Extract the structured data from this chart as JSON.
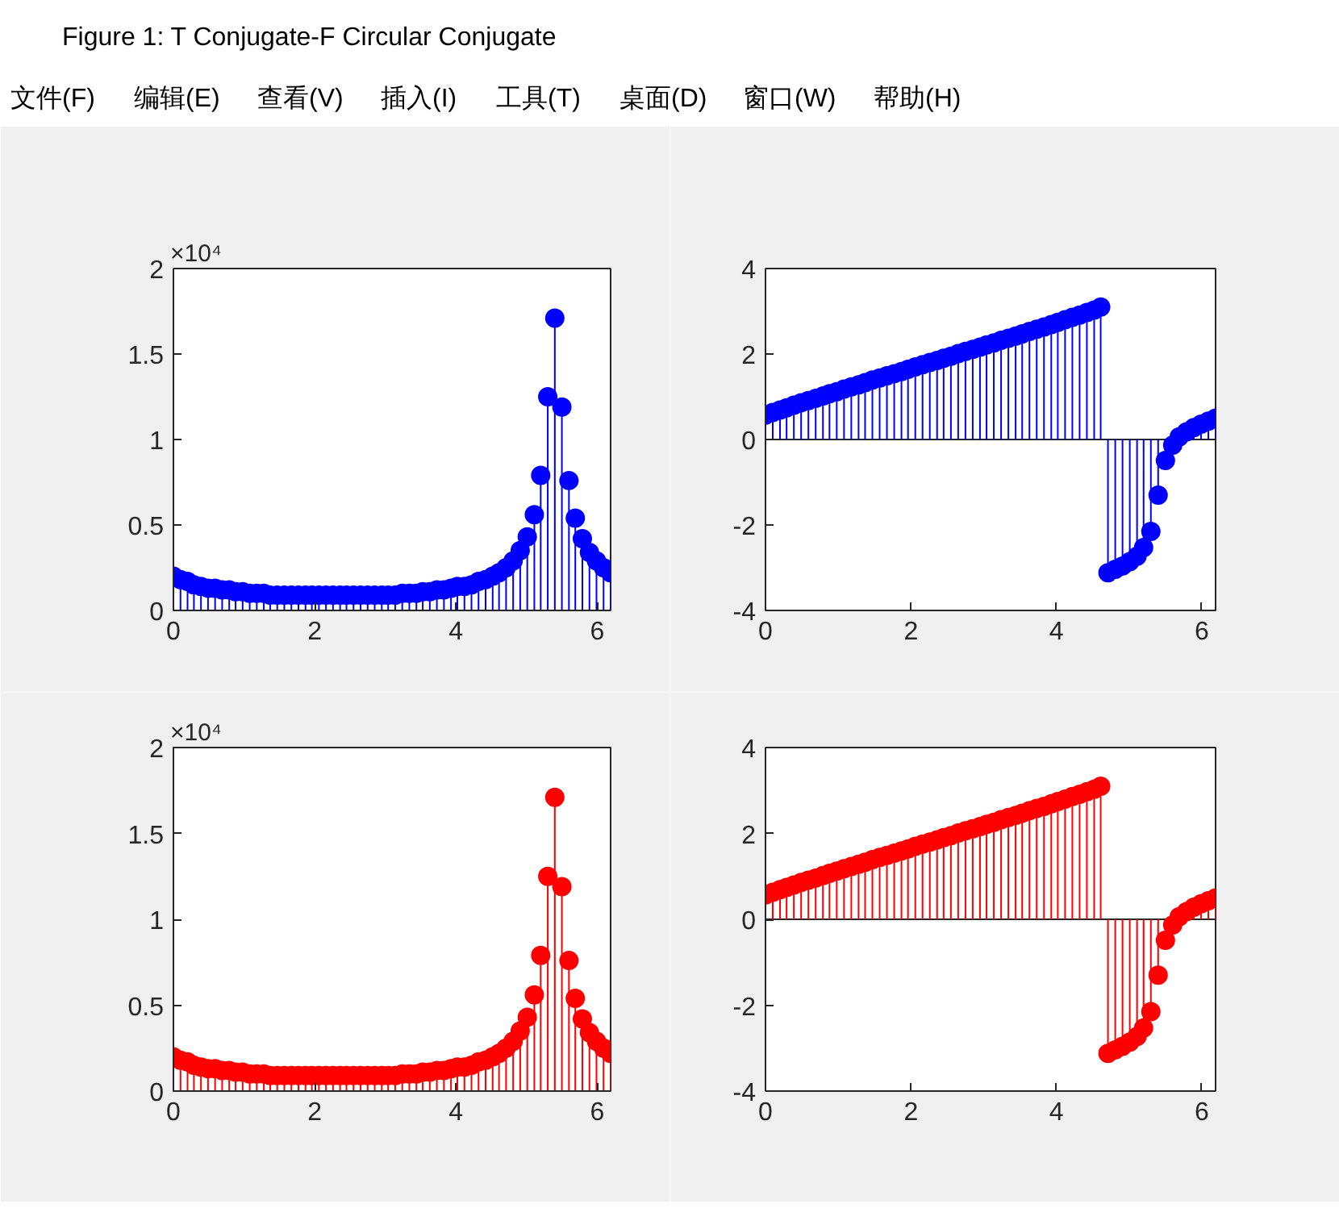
{
  "chart_data": [
    {
      "type": "other",
      "title": "Figure 1: T Conjugate-F Circular Conjugate",
      "annotations": [
        "文件(F)",
        "编辑(E)",
        "查看(V)",
        "插入(I)",
        "工具(T)",
        "桌面(D)",
        "窗口(W)",
        "帮助(H)"
      ]
    },
    {
      "type": "lollipop",
      "color": "#0000ff",
      "marker": "circle",
      "annotations": [
        "×10⁴"
      ],
      "x": [
        0,
        0.1,
        0.2,
        0.29,
        0.39,
        0.49,
        0.59,
        0.69,
        0.79,
        0.88,
        0.98,
        1.08,
        1.18,
        1.28,
        1.37,
        1.47,
        1.57,
        1.67,
        1.77,
        1.87,
        1.96,
        2.06,
        2.16,
        2.26,
        2.36,
        2.45,
        2.55,
        2.65,
        2.75,
        2.85,
        2.95,
        3.04,
        3.14,
        3.24,
        3.34,
        3.44,
        3.53,
        3.63,
        3.73,
        3.83,
        3.93,
        4.02,
        4.12,
        4.22,
        4.32,
        4.42,
        4.52,
        4.61,
        4.71,
        4.81,
        4.91,
        5.01,
        5.11,
        5.2,
        5.3,
        5.4,
        5.5,
        5.6,
        5.69,
        5.79,
        5.89,
        5.99,
        6.09,
        6.19
      ],
      "values": [
        0.2,
        0.18,
        0.17,
        0.15,
        0.14,
        0.13,
        0.13,
        0.12,
        0.12,
        0.11,
        0.11,
        0.1,
        0.1,
        0.1,
        0.09,
        0.09,
        0.09,
        0.09,
        0.09,
        0.09,
        0.09,
        0.09,
        0.09,
        0.09,
        0.09,
        0.09,
        0.09,
        0.09,
        0.09,
        0.09,
        0.09,
        0.09,
        0.09,
        0.1,
        0.1,
        0.1,
        0.11,
        0.11,
        0.12,
        0.12,
        0.13,
        0.14,
        0.14,
        0.15,
        0.17,
        0.18,
        0.2,
        0.22,
        0.25,
        0.29,
        0.35,
        0.43,
        0.56,
        0.79,
        1.25,
        1.71,
        1.19,
        0.76,
        0.54,
        0.42,
        0.34,
        0.29,
        0.25,
        0.22
      ],
      "xlim": [
        0,
        6.19
      ],
      "xticks": [
        0,
        2,
        4,
        6
      ],
      "ylim": [
        0,
        2
      ],
      "yticks": [
        0,
        0.5,
        1,
        1.5,
        2
      ]
    },
    {
      "type": "lollipop",
      "color": "#0000ff",
      "marker": "circle",
      "x": [
        0,
        0.1,
        0.2,
        0.29,
        0.39,
        0.49,
        0.59,
        0.69,
        0.79,
        0.88,
        0.98,
        1.08,
        1.18,
        1.28,
        1.37,
        1.47,
        1.57,
        1.67,
        1.77,
        1.87,
        1.96,
        2.06,
        2.16,
        2.26,
        2.36,
        2.45,
        2.55,
        2.65,
        2.75,
        2.85,
        2.95,
        3.04,
        3.14,
        3.24,
        3.34,
        3.44,
        3.53,
        3.63,
        3.73,
        3.83,
        3.93,
        4.02,
        4.12,
        4.22,
        4.32,
        4.42,
        4.52,
        4.61,
        4.71,
        4.81,
        4.91,
        5.01,
        5.11,
        5.2,
        5.3,
        5.4,
        5.5,
        5.6,
        5.69,
        5.79,
        5.89,
        5.99,
        6.09,
        6.19
      ],
      "values": [
        0.57,
        0.63,
        0.69,
        0.74,
        0.8,
        0.86,
        0.91,
        0.96,
        1.02,
        1.07,
        1.12,
        1.18,
        1.23,
        1.28,
        1.33,
        1.39,
        1.44,
        1.49,
        1.54,
        1.59,
        1.64,
        1.7,
        1.75,
        1.8,
        1.85,
        1.9,
        1.95,
        2.01,
        2.06,
        2.11,
        2.16,
        2.21,
        2.26,
        2.32,
        2.37,
        2.42,
        2.47,
        2.53,
        2.58,
        2.63,
        2.69,
        2.74,
        2.8,
        2.86,
        2.91,
        2.97,
        3.03,
        3.1,
        -3.12,
        -3.04,
        -2.96,
        -2.86,
        -2.73,
        -2.53,
        -2.15,
        -1.3,
        -0.49,
        -0.13,
        0.06,
        0.18,
        0.28,
        0.36,
        0.43,
        0.5
      ],
      "xlim": [
        0,
        6.19
      ],
      "xticks": [
        0,
        2,
        4,
        6
      ],
      "ylim": [
        -4,
        4
      ],
      "yticks": [
        -4,
        -2,
        0,
        2,
        4
      ],
      "ref_lines": [
        {
          "axis": "y",
          "value": 0,
          "color": "#262626"
        }
      ]
    },
    {
      "type": "lollipop",
      "color": "#ff0000",
      "marker": "circle",
      "annotations": [
        "×10⁴"
      ],
      "x": [
        0,
        0.1,
        0.2,
        0.29,
        0.39,
        0.49,
        0.59,
        0.69,
        0.79,
        0.88,
        0.98,
        1.08,
        1.18,
        1.28,
        1.37,
        1.47,
        1.57,
        1.67,
        1.77,
        1.87,
        1.96,
        2.06,
        2.16,
        2.26,
        2.36,
        2.45,
        2.55,
        2.65,
        2.75,
        2.85,
        2.95,
        3.04,
        3.14,
        3.24,
        3.34,
        3.44,
        3.53,
        3.63,
        3.73,
        3.83,
        3.93,
        4.02,
        4.12,
        4.22,
        4.32,
        4.42,
        4.52,
        4.61,
        4.71,
        4.81,
        4.91,
        5.01,
        5.11,
        5.2,
        5.3,
        5.4,
        5.5,
        5.6,
        5.69,
        5.79,
        5.89,
        5.99,
        6.09,
        6.19
      ],
      "values": [
        0.2,
        0.18,
        0.17,
        0.15,
        0.14,
        0.13,
        0.13,
        0.12,
        0.12,
        0.11,
        0.11,
        0.1,
        0.1,
        0.1,
        0.09,
        0.09,
        0.09,
        0.09,
        0.09,
        0.09,
        0.09,
        0.09,
        0.09,
        0.09,
        0.09,
        0.09,
        0.09,
        0.09,
        0.09,
        0.09,
        0.09,
        0.09,
        0.09,
        0.1,
        0.1,
        0.1,
        0.11,
        0.11,
        0.12,
        0.12,
        0.13,
        0.14,
        0.14,
        0.15,
        0.17,
        0.18,
        0.2,
        0.22,
        0.25,
        0.29,
        0.35,
        0.43,
        0.56,
        0.79,
        1.25,
        1.71,
        1.19,
        0.76,
        0.54,
        0.42,
        0.34,
        0.29,
        0.25,
        0.22
      ],
      "xlim": [
        0,
        6.19
      ],
      "xticks": [
        0,
        2,
        4,
        6
      ],
      "ylim": [
        0,
        2
      ],
      "yticks": [
        0,
        0.5,
        1,
        1.5,
        2
      ]
    },
    {
      "type": "lollipop",
      "color": "#ff0000",
      "marker": "circle",
      "x": [
        0,
        0.1,
        0.2,
        0.29,
        0.39,
        0.49,
        0.59,
        0.69,
        0.79,
        0.88,
        0.98,
        1.08,
        1.18,
        1.28,
        1.37,
        1.47,
        1.57,
        1.67,
        1.77,
        1.87,
        1.96,
        2.06,
        2.16,
        2.26,
        2.36,
        2.45,
        2.55,
        2.65,
        2.75,
        2.85,
        2.95,
        3.04,
        3.14,
        3.24,
        3.34,
        3.44,
        3.53,
        3.63,
        3.73,
        3.83,
        3.93,
        4.02,
        4.12,
        4.22,
        4.32,
        4.42,
        4.52,
        4.61,
        4.71,
        4.81,
        4.91,
        5.01,
        5.11,
        5.2,
        5.3,
        5.4,
        5.5,
        5.6,
        5.69,
        5.79,
        5.89,
        5.99,
        6.09,
        6.19
      ],
      "values": [
        0.57,
        0.63,
        0.69,
        0.74,
        0.8,
        0.86,
        0.91,
        0.96,
        1.02,
        1.07,
        1.12,
        1.18,
        1.23,
        1.28,
        1.33,
        1.39,
        1.44,
        1.49,
        1.54,
        1.59,
        1.64,
        1.7,
        1.75,
        1.8,
        1.85,
        1.9,
        1.95,
        2.01,
        2.06,
        2.11,
        2.16,
        2.21,
        2.26,
        2.32,
        2.37,
        2.42,
        2.47,
        2.53,
        2.58,
        2.63,
        2.69,
        2.74,
        2.8,
        2.86,
        2.91,
        2.97,
        3.03,
        3.1,
        -3.12,
        -3.04,
        -2.96,
        -2.86,
        -2.73,
        -2.53,
        -2.15,
        -1.3,
        -0.49,
        -0.13,
        0.06,
        0.18,
        0.28,
        0.36,
        0.43,
        0.5
      ],
      "xlim": [
        0,
        6.19
      ],
      "xticks": [
        0,
        2,
        4,
        6
      ],
      "ylim": [
        -4,
        4
      ],
      "yticks": [
        -4,
        -2,
        0,
        2,
        4
      ],
      "ref_lines": [
        {
          "axis": "y",
          "value": 0,
          "color": "#262626"
        }
      ]
    }
  ]
}
